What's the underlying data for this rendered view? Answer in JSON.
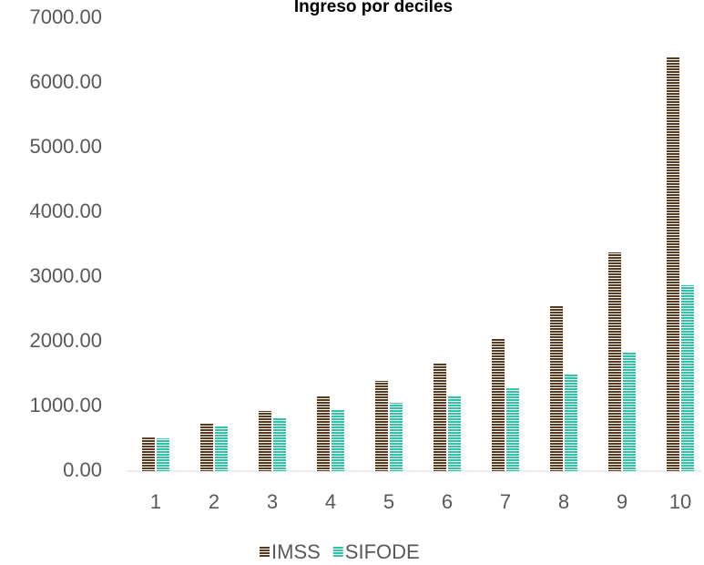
{
  "chart_data": {
    "type": "bar",
    "title": "Ingreso por deciles",
    "categories": [
      "1",
      "2",
      "3",
      "4",
      "5",
      "6",
      "7",
      "8",
      "9",
      "10"
    ],
    "series": [
      {
        "name": "IMSS",
        "color": "#5b3a1e",
        "values": [
          520,
          745,
          930,
          1155,
          1395,
          1675,
          2055,
          2550,
          3380,
          6395
        ]
      },
      {
        "name": "SIFODE",
        "color": "#2fc4a8",
        "values": [
          505,
          690,
          830,
          945,
          1055,
          1170,
          1280,
          1505,
          1845,
          2875
        ]
      }
    ],
    "ylim": [
      0,
      7000
    ],
    "yticks": [
      {
        "value": 0,
        "label": "0.00"
      },
      {
        "value": 1000,
        "label": "1000.00"
      },
      {
        "value": 2000,
        "label": "2000.00"
      },
      {
        "value": 3000,
        "label": "3000.00"
      },
      {
        "value": 4000,
        "label": "4000.00"
      },
      {
        "value": 5000,
        "label": "5000.00"
      },
      {
        "value": 6000,
        "label": "6000.00"
      },
      {
        "value": 7000,
        "label": "7000.00"
      }
    ],
    "legend": "bottom"
  }
}
